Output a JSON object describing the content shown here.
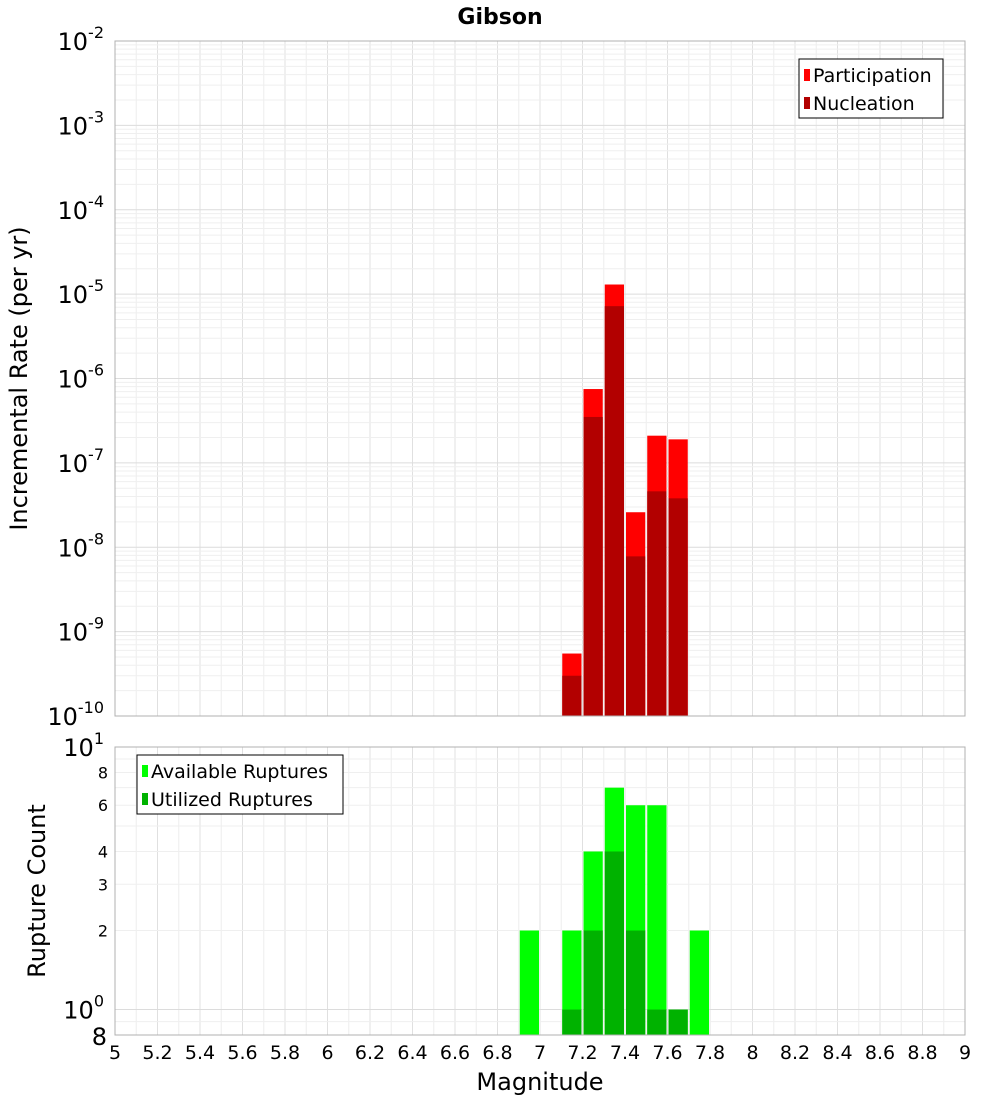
{
  "chart_data": [
    {
      "type": "bar",
      "panel": "top",
      "title": "Gibson",
      "ylabel": "Incremental Rate (per yr)",
      "xlabel": "",
      "y_scale": "log",
      "ylim": [
        1e-10,
        0.01
      ],
      "xlim": [
        5,
        9
      ],
      "bin_width": 0.1,
      "y_major_ticks": [
        {
          "base": "10",
          "exp": "-10",
          "value": 1e-10
        },
        {
          "base": "10",
          "exp": "-9",
          "value": 1e-09
        },
        {
          "base": "10",
          "exp": "-8",
          "value": 1e-08
        },
        {
          "base": "10",
          "exp": "-7",
          "value": 1e-07
        },
        {
          "base": "10",
          "exp": "-6",
          "value": 1e-06
        },
        {
          "base": "10",
          "exp": "-5",
          "value": 1e-05
        },
        {
          "base": "10",
          "exp": "-4",
          "value": 0.0001
        },
        {
          "base": "10",
          "exp": "-3",
          "value": 0.001
        },
        {
          "base": "10",
          "exp": "-2",
          "value": 0.01
        }
      ],
      "legend_position": "top-right",
      "grid": true,
      "series": [
        {
          "name": "Participation",
          "color": "#ff0000",
          "points": [
            {
              "x": 7.15,
              "y": 5.5e-10
            },
            {
              "x": 7.25,
              "y": 7.5e-07
            },
            {
              "x": 7.35,
              "y": 1.3e-05
            },
            {
              "x": 7.45,
              "y": 2.6e-08
            },
            {
              "x": 7.55,
              "y": 2.1e-07
            },
            {
              "x": 7.65,
              "y": 1.9e-07
            }
          ]
        },
        {
          "name": "Nucleation",
          "color": "#b20000",
          "points": [
            {
              "x": 7.15,
              "y": 3e-10
            },
            {
              "x": 7.25,
              "y": 3.5e-07
            },
            {
              "x": 7.35,
              "y": 7.2e-06
            },
            {
              "x": 7.45,
              "y": 7.8e-09
            },
            {
              "x": 7.55,
              "y": 4.6e-08
            },
            {
              "x": 7.65,
              "y": 3.8e-08
            }
          ]
        }
      ]
    },
    {
      "type": "bar",
      "panel": "bottom",
      "title": "",
      "ylabel": "Rupture Count",
      "xlabel": "Magnitude",
      "y_scale": "log",
      "ylim": [
        0.8,
        10
      ],
      "xlim": [
        5,
        9
      ],
      "bin_width": 0.1,
      "x_ticks": [
        "5",
        "5.2",
        "5.4",
        "5.6",
        "5.8",
        "6",
        "6.2",
        "6.4",
        "6.6",
        "6.8",
        "7",
        "7.2",
        "7.4",
        "7.6",
        "7.8",
        "8",
        "8.2",
        "8.4",
        "8.6",
        "8.8",
        "9"
      ],
      "y_major_ticks": [
        {
          "base": "10",
          "exp": "0",
          "value": 1
        },
        {
          "base": "10",
          "exp": "1",
          "value": 10
        }
      ],
      "y_minor_ticks": [
        {
          "label": "8",
          "value": 0.8
        },
        {
          "label": "2",
          "value": 2
        },
        {
          "label": "3",
          "value": 3
        },
        {
          "label": "4",
          "value": 4
        },
        {
          "label": "6",
          "value": 6
        },
        {
          "label": "8",
          "value": 8
        }
      ],
      "legend_position": "top-left",
      "grid": true,
      "series": [
        {
          "name": "Available Ruptures",
          "color": "#00ff00",
          "points": [
            {
              "x": 6.95,
              "y": 2
            },
            {
              "x": 7.15,
              "y": 2
            },
            {
              "x": 7.25,
              "y": 4
            },
            {
              "x": 7.35,
              "y": 7
            },
            {
              "x": 7.45,
              "y": 6
            },
            {
              "x": 7.55,
              "y": 6
            },
            {
              "x": 7.65,
              "y": 1
            },
            {
              "x": 7.75,
              "y": 2
            }
          ]
        },
        {
          "name": "Utilized Ruptures",
          "color": "#00b200",
          "points": [
            {
              "x": 7.15,
              "y": 1
            },
            {
              "x": 7.25,
              "y": 2
            },
            {
              "x": 7.35,
              "y": 4
            },
            {
              "x": 7.45,
              "y": 2
            },
            {
              "x": 7.55,
              "y": 1
            },
            {
              "x": 7.65,
              "y": 1
            }
          ]
        }
      ]
    }
  ]
}
